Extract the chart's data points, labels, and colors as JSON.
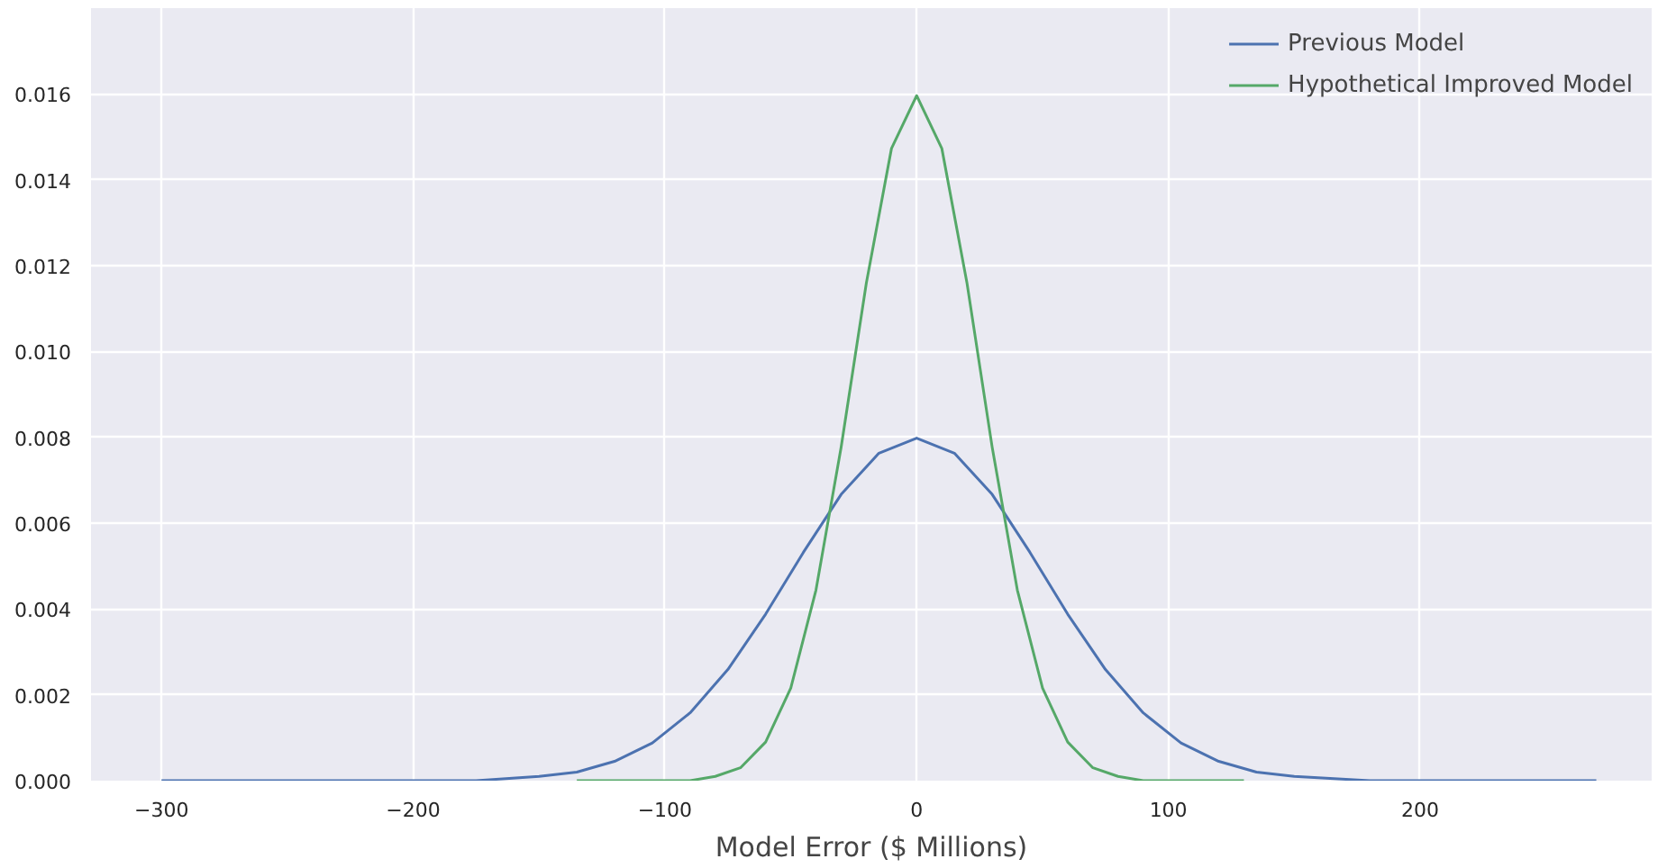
{
  "chart_data": {
    "type": "line",
    "xlabel": "Model Error ($ Millions)",
    "xlim": [
      -328,
      292
    ],
    "ylim": [
      0,
      0.018
    ],
    "xticks": [
      {
        "value": -300,
        "label": "−300"
      },
      {
        "value": -200,
        "label": "−200"
      },
      {
        "value": -100,
        "label": "−100"
      },
      0,
      100,
      200
    ],
    "yticks": [
      {
        "value": 0,
        "label": "0.000"
      },
      {
        "value": 0.002,
        "label": "0.002"
      },
      {
        "value": 0.004,
        "label": "0.004"
      },
      {
        "value": 0.006,
        "label": "0.006"
      },
      {
        "value": 0.008,
        "label": "0.008"
      },
      {
        "value": 0.01,
        "label": "0.010"
      },
      {
        "value": 0.012,
        "label": "0.012"
      },
      {
        "value": 0.014,
        "label": "0.014"
      },
      {
        "value": 0.016,
        "label": "0.016"
      }
    ],
    "grid": true,
    "legend": "top right",
    "line_style": "solid",
    "marker": "none",
    "series": [
      {
        "name": "Previous Model",
        "color": "#4c72b0",
        "x": [
          -300,
          -250,
          -200,
          -175,
          -150,
          -135,
          -120,
          -105,
          -90,
          -75,
          -60,
          -45,
          -30,
          -15,
          0,
          15,
          30,
          45,
          60,
          75,
          90,
          105,
          120,
          135,
          150,
          180,
          210,
          240,
          270
        ],
        "values": [
          0,
          0,
          0,
          0,
          0.0001,
          0.0002,
          0.00045,
          0.00088,
          0.00158,
          0.00259,
          0.00388,
          0.00532,
          0.00667,
          0.00763,
          0.00798,
          0.00763,
          0.00667,
          0.00532,
          0.00388,
          0.00259,
          0.00158,
          0.00088,
          0.00045,
          0.0002,
          0.0001,
          0,
          0,
          0,
          0
        ]
      },
      {
        "name": "Hypothetical Improved Model",
        "color": "#55a868",
        "x": [
          -135,
          -100,
          -90,
          -80,
          -70,
          -60,
          -50,
          -40,
          -30,
          -20,
          -10,
          0,
          10,
          20,
          30,
          40,
          50,
          60,
          70,
          80,
          90,
          100,
          130
        ],
        "values": [
          0,
          0,
          0,
          0.0001,
          0.0003,
          0.0009,
          0.00216,
          0.00444,
          0.00777,
          0.01159,
          0.01473,
          0.01596,
          0.01473,
          0.01159,
          0.00777,
          0.00444,
          0.00216,
          0.0009,
          0.0003,
          0.0001,
          0,
          0,
          0
        ]
      }
    ]
  }
}
